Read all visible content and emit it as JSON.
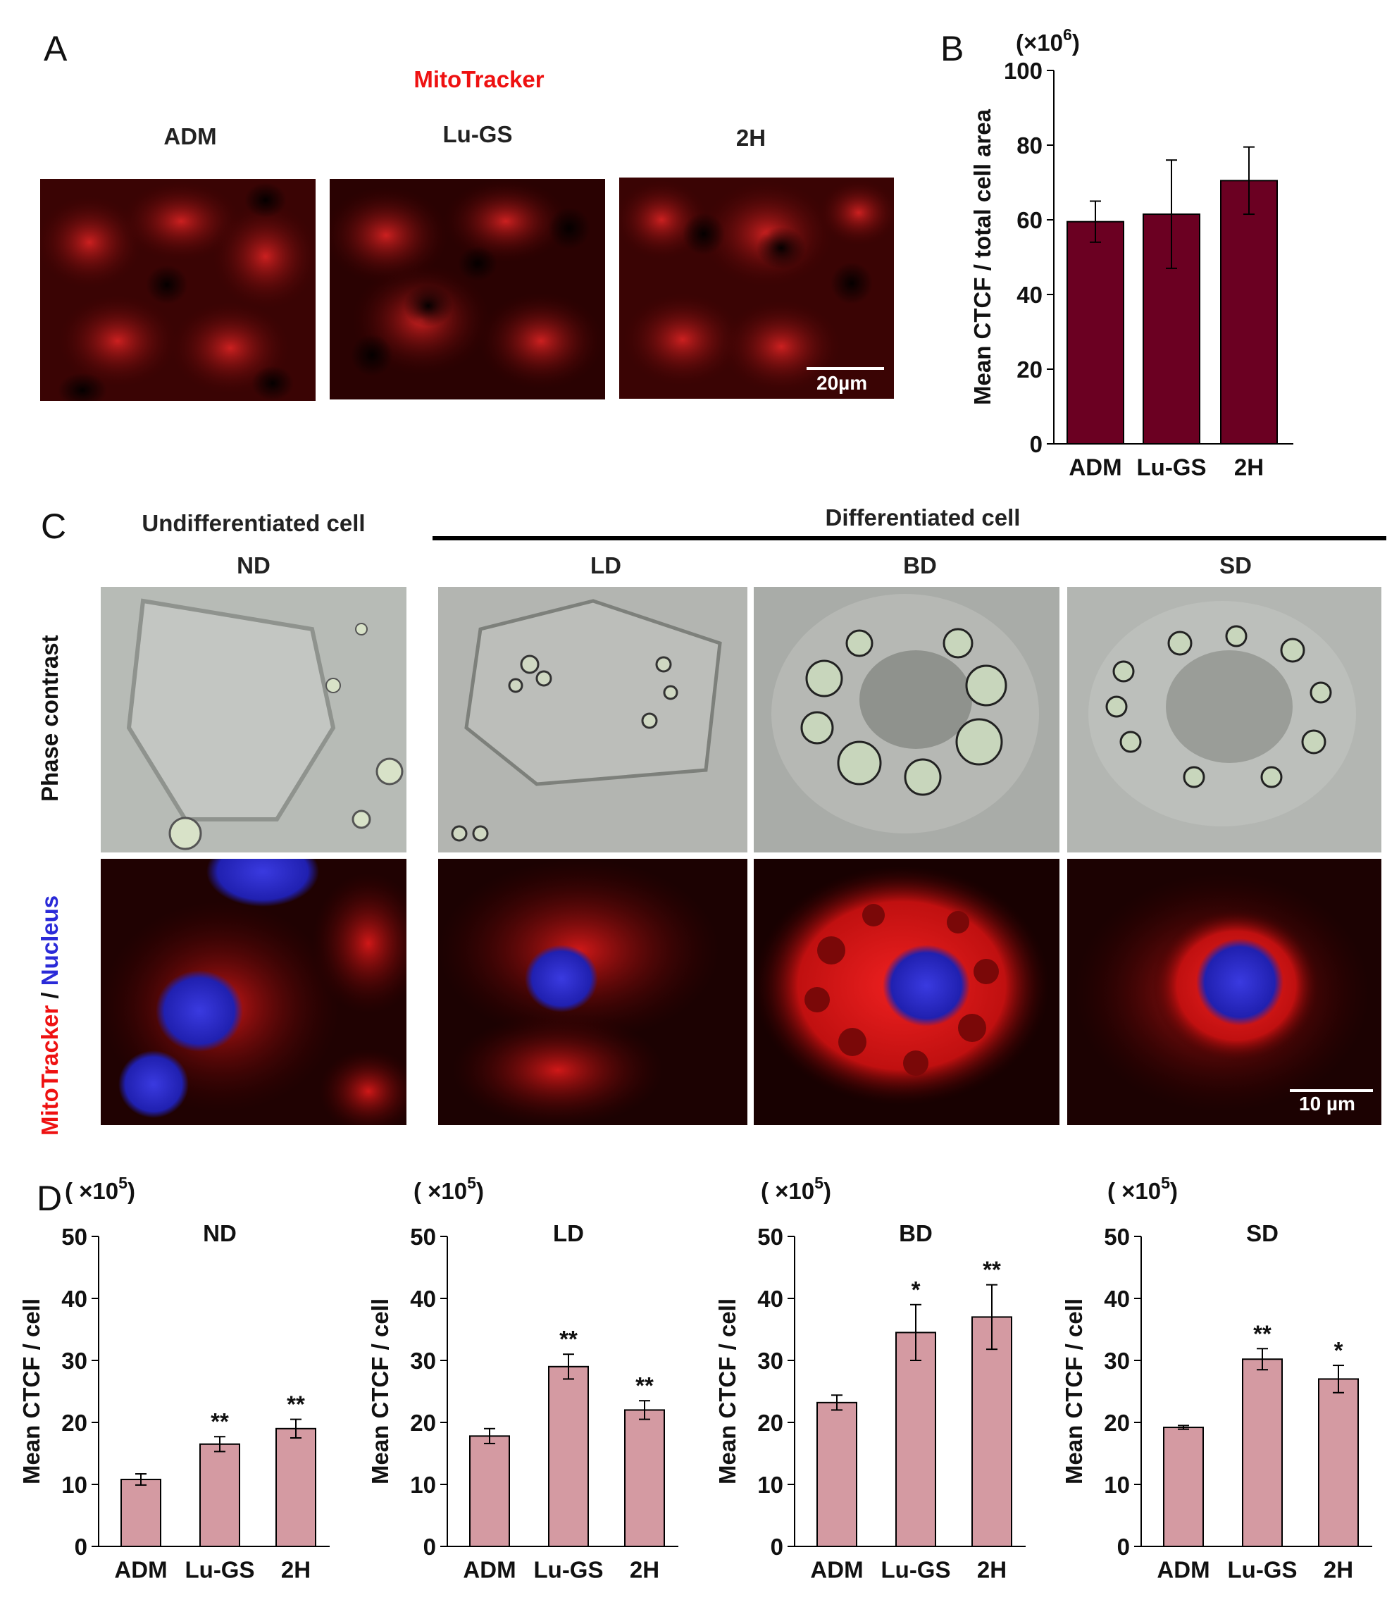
{
  "panels": {
    "A": {
      "label": "A",
      "title": "MitoTracker",
      "columns": [
        "ADM",
        "Lu-GS",
        "2H"
      ],
      "scalebar": "20µm"
    },
    "B": {
      "label": "B"
    },
    "C": {
      "label": "C",
      "undiff_header": "Undifferentiated cell",
      "diff_header": "Differentiated cell",
      "columns": [
        "ND",
        "LD",
        "BD",
        "SD"
      ],
      "row_phase": "Phase contrast",
      "row_fluo_red": "MitoTracker",
      "row_fluo_sep": " / ",
      "row_fluo_blue": "Nucleus",
      "scalebar": "10 µm"
    },
    "D": {
      "label": "D"
    }
  },
  "colors": {
    "bar_B": "#6b0022",
    "bar_D": "#d49aa2",
    "mito_red": "#ee1111",
    "nucleus_blue": "#2a2ad8"
  },
  "chart_data": [
    {
      "id": "B",
      "type": "bar",
      "categories": [
        "ADM",
        "Lu-GS",
        "2H"
      ],
      "values": [
        59.5,
        61.5,
        70.5
      ],
      "errors": [
        5.5,
        14.5,
        9
      ],
      "ylabel": "Mean CTCF / total cell area",
      "multiplier": "(×10",
      "multiplier_exp": "6",
      "multiplier_close": ")",
      "ylim": [
        0,
        100
      ],
      "yticks": [
        0,
        20,
        40,
        60,
        80,
        100
      ],
      "significance": [
        "",
        "",
        ""
      ]
    },
    {
      "id": "D-ND",
      "type": "bar",
      "title": "ND",
      "categories": [
        "ADM",
        "Lu-GS",
        "2H"
      ],
      "values": [
        10.8,
        16.5,
        19
      ],
      "errors": [
        0.9,
        1.2,
        1.5
      ],
      "ylabel": "Mean CTCF / cell",
      "multiplier": "( ×10",
      "multiplier_exp": "5",
      "multiplier_close": ")",
      "ylim": [
        0,
        50
      ],
      "yticks": [
        0,
        10,
        20,
        30,
        40,
        50
      ],
      "significance": [
        "",
        "**",
        "**"
      ]
    },
    {
      "id": "D-LD",
      "type": "bar",
      "title": "LD",
      "categories": [
        "ADM",
        "Lu-GS",
        "2H"
      ],
      "values": [
        17.8,
        29,
        22
      ],
      "errors": [
        1.2,
        2,
        1.5
      ],
      "ylabel": "Mean CTCF / cell",
      "multiplier": "( ×10",
      "multiplier_exp": "5",
      "multiplier_close": ")",
      "ylim": [
        0,
        50
      ],
      "yticks": [
        0,
        10,
        20,
        30,
        40,
        50
      ],
      "significance": [
        "",
        "**",
        "**"
      ]
    },
    {
      "id": "D-BD",
      "type": "bar",
      "title": "BD",
      "categories": [
        "ADM",
        "Lu-GS",
        "2H"
      ],
      "values": [
        23.2,
        34.5,
        37
      ],
      "errors": [
        1.2,
        4.5,
        5.2
      ],
      "ylabel": "Mean CTCF / cell",
      "multiplier": "( ×10",
      "multiplier_exp": "5",
      "multiplier_close": ")",
      "ylim": [
        0,
        50
      ],
      "yticks": [
        0,
        10,
        20,
        30,
        40,
        50
      ],
      "significance": [
        "",
        "*",
        "**"
      ]
    },
    {
      "id": "D-SD",
      "type": "bar",
      "title": "SD",
      "categories": [
        "ADM",
        "Lu-GS",
        "2H"
      ],
      "values": [
        19.2,
        30.2,
        27
      ],
      "errors": [
        0.3,
        1.7,
        2.2
      ],
      "ylabel": "Mean CTCF / cell",
      "multiplier": "( ×10",
      "multiplier_exp": "5",
      "multiplier_close": ")",
      "ylim": [
        0,
        50
      ],
      "yticks": [
        0,
        10,
        20,
        30,
        40,
        50
      ],
      "significance": [
        "",
        "**",
        "*"
      ]
    }
  ]
}
